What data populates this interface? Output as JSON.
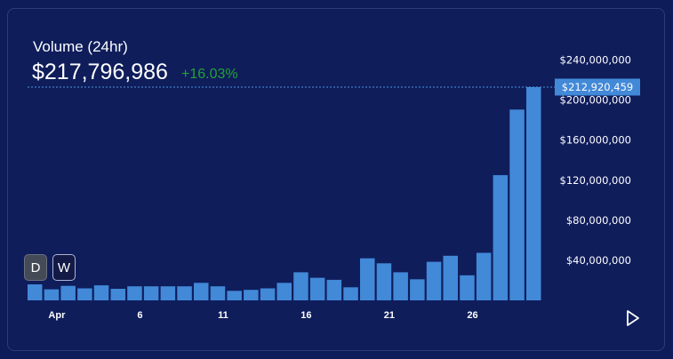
{
  "header": {
    "title": "Volume (24hr)",
    "value": "$217,796,986",
    "change": "+16.03%"
  },
  "controls": {
    "day_label": "D",
    "week_label": "W"
  },
  "colors": {
    "background": "#0e1c59",
    "bar": "#4289d8",
    "change_positive": "#23a331",
    "price_tag": "#4289d8"
  },
  "icons": {
    "play": "play-icon"
  },
  "chart_data": {
    "type": "bar",
    "title": "Volume (24hr)",
    "xlabel": "",
    "ylabel": "",
    "ylim": [
      0,
      240000000
    ],
    "y_ticks": [
      "$40,000,000",
      "$80,000,000",
      "$120,000,000",
      "$160,000,000",
      "$200,000,000",
      "$240,000,000"
    ],
    "x_tick_labels": [
      {
        "index": 3,
        "label": "Apr"
      },
      {
        "index": 8,
        "label": "6"
      },
      {
        "index": 13,
        "label": "11"
      },
      {
        "index": 18,
        "label": "16"
      },
      {
        "index": 23,
        "label": "21"
      },
      {
        "index": 28,
        "label": "26"
      }
    ],
    "current_value_label": "$212,920,459",
    "current_value": 212920459,
    "values": [
      16000000,
      11000000,
      14500000,
      12000000,
      15000000,
      11500000,
      14000000,
      14000000,
      14000000,
      14000000,
      17500000,
      14000000,
      9500000,
      10500000,
      12000000,
      17500000,
      28000000,
      22500000,
      20500000,
      13000000,
      42000000,
      37000000,
      28000000,
      21000000,
      38500000,
      44500000,
      25000000,
      47500000,
      125000000,
      190500000,
      212920459
    ],
    "grid": false,
    "legend": "none"
  }
}
